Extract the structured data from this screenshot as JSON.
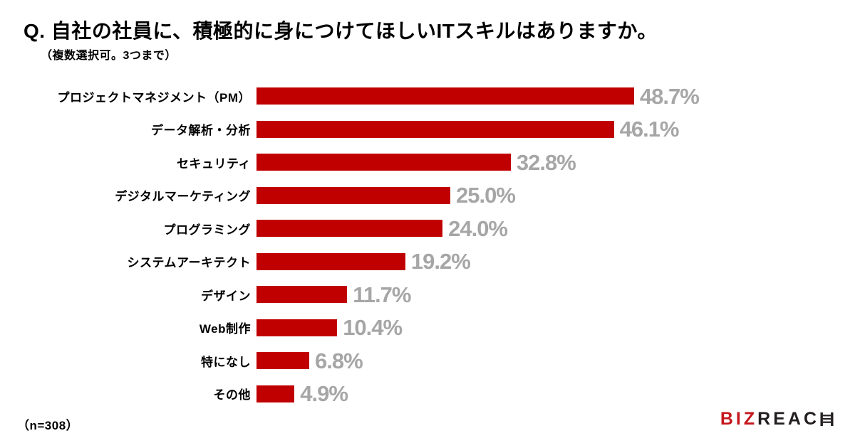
{
  "header": {
    "title": "Q. 自社の社員に、積極的に身につけてほしいITスキルはありますか。",
    "note": "（複数選択可。3つまで）"
  },
  "chart_data": {
    "type": "bar",
    "orientation": "horizontal",
    "title": "Q. 自社の社員に、積極的に身につけてほしいITスキルはありますか。",
    "subtitle": "（複数選択可。3つまで）",
    "categories": [
      "プロジェクトマネジメント（PM）",
      "データ解析・分析",
      "セキュリティ",
      "デジタルマーケティング",
      "プログラミング",
      "システムアーキテクト",
      "デザイン",
      "Web制作",
      "特になし",
      "その他"
    ],
    "values": [
      48.7,
      46.1,
      32.8,
      25.0,
      24.0,
      19.2,
      11.7,
      10.4,
      6.8,
      4.9
    ],
    "value_labels": [
      "48.7%",
      "46.1%",
      "32.8%",
      "25.0%",
      "24.0%",
      "19.2%",
      "11.7%",
      "10.4%",
      "6.8%",
      "4.9%"
    ],
    "xlabel": "",
    "ylabel": "",
    "xlim": [
      0,
      50
    ],
    "grid": false,
    "legend": false,
    "bar_color": "#C00000",
    "value_label_color": "#A6A6A6",
    "category_label_color": "#000000"
  },
  "footer": {
    "sample_size": "（n=308）"
  },
  "logo": {
    "red_text": "BIZ",
    "dark_text": "REAC",
    "ladder_letter": "H",
    "red_color": "#C4161C",
    "dark_color": "#231F20"
  }
}
